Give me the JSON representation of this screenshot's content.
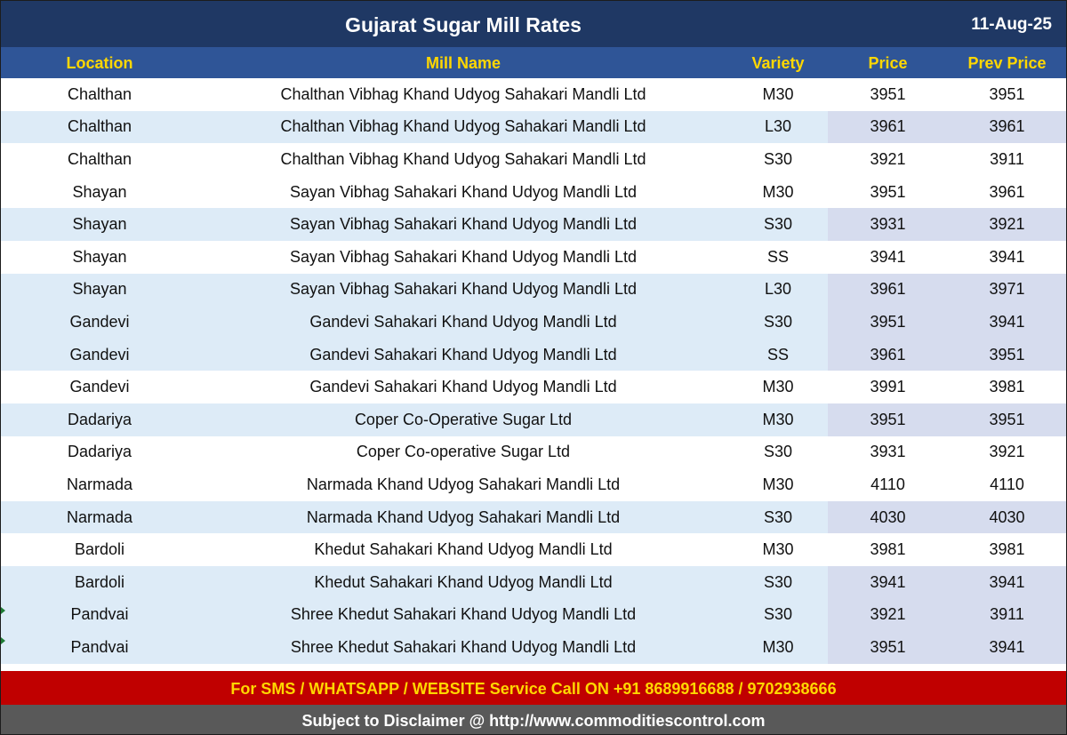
{
  "header": {
    "title": "Gujarat Sugar Mill Rates",
    "date": "11-Aug-25"
  },
  "columns": [
    "Location",
    "Mill Name",
    "Variety",
    "Price",
    "Prev Price"
  ],
  "rows": [
    [
      "Chalthan",
      "Chalthan Vibhag Khand Udyog Sahakari Mandli Ltd",
      "M30",
      "3951",
      "3951"
    ],
    [
      "Chalthan",
      "Chalthan Vibhag Khand Udyog Sahakari Mandli Ltd",
      "L30",
      "3961",
      "3961"
    ],
    [
      "Chalthan",
      "Chalthan Vibhag Khand Udyog Sahakari Mandli Ltd",
      "S30",
      "3921",
      "3911"
    ],
    [
      "Shayan",
      "Sayan Vibhag Sahakari Khand Udyog Mandli Ltd",
      "M30",
      "3951",
      "3961"
    ],
    [
      "Shayan",
      "Sayan Vibhag Sahakari Khand Udyog Mandli Ltd",
      "S30",
      "3931",
      "3921"
    ],
    [
      "Shayan",
      "Sayan Vibhag Sahakari Khand Udyog Mandli Ltd",
      "SS",
      "3941",
      "3941"
    ],
    [
      "Shayan",
      "Sayan Vibhag Sahakari Khand Udyog Mandli Ltd",
      "L30",
      "3961",
      "3971"
    ],
    [
      "Gandevi",
      "Gandevi Sahakari Khand Udyog Mandli Ltd",
      "S30",
      "3951",
      "3941"
    ],
    [
      "Gandevi",
      "Gandevi Sahakari Khand Udyog Mandli Ltd",
      "SS",
      "3961",
      "3951"
    ],
    [
      "Gandevi",
      "Gandevi Sahakari Khand Udyog Mandli Ltd",
      "M30",
      "3991",
      "3981"
    ],
    [
      "Dadariya",
      "Coper Co-Operative Sugar Ltd",
      "M30",
      "3951",
      "3951"
    ],
    [
      "Dadariya",
      "Coper Co-operative Sugar Ltd",
      "S30",
      "3931",
      "3921"
    ],
    [
      "Narmada",
      "Narmada Khand Udyog Sahakari Mandli Ltd",
      "M30",
      "4110",
      "4110"
    ],
    [
      "Narmada",
      "Narmada Khand Udyog Sahakari Mandli Ltd",
      "S30",
      "4030",
      "4030"
    ],
    [
      "Bardoli",
      "Khedut Sahakari Khand Udyog Mandli Ltd",
      "M30",
      "3981",
      "3981"
    ],
    [
      "Bardoli",
      "Khedut Sahakari Khand Udyog Mandli Ltd",
      "S30",
      "3941",
      "3941"
    ],
    [
      "Pandvai",
      "Shree Khedut Sahakari Khand Udyog Mandli Ltd",
      "S30",
      "3921",
      "3911"
    ],
    [
      "Pandvai",
      "Shree Khedut Sahakari Khand Udyog Mandli Ltd",
      "M30",
      "3951",
      "3941"
    ]
  ],
  "footer": {
    "contact": "For SMS / WHATSAPP / WEBSITE Service Call  ON  +91 8689916688 / 9702938666",
    "disclaimer": "Subject to Disclaimer @  http://www.commoditiescontrol.com"
  },
  "colors": {
    "title_bg": "#1f3864",
    "header_bg": "#2f5597",
    "header_text": "#ffd700",
    "alt_row": "#ddebf7",
    "contact_bg": "#c00000",
    "disclaimer_bg": "#595959"
  }
}
